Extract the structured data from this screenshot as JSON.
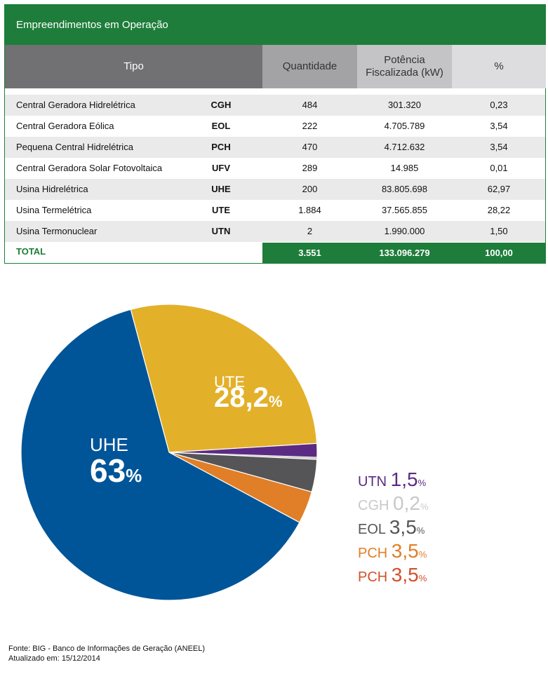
{
  "table": {
    "title": "Empreendimentos em Operação",
    "headers": {
      "tipo": "Tipo",
      "quantidade": "Quantidade",
      "potencia_line1": "Potência",
      "potencia_line2": "Fiscalizada (kW)",
      "percent": "%"
    },
    "rows": [
      {
        "name": "Central Geradora Hidrelétrica",
        "code": "CGH",
        "quantidade": "484",
        "potencia": "301.320",
        "percent": "0,23"
      },
      {
        "name": "Central Geradora Eólica",
        "code": "EOL",
        "quantidade": "222",
        "potencia": "4.705.789",
        "percent": "3,54"
      },
      {
        "name": "Pequena Central Hidrelétrica",
        "code": "PCH",
        "quantidade": "470",
        "potencia": "4.712.632",
        "percent": "3,54"
      },
      {
        "name": "Central Geradora Solar Fotovoltaica",
        "code": "UFV",
        "quantidade": "289",
        "potencia": "14.985",
        "percent": "0,01"
      },
      {
        "name": "Usina Hidrelétrica",
        "code": "UHE",
        "quantidade": "200",
        "potencia": "83.805.698",
        "percent": "62,97"
      },
      {
        "name": "Usina Termelétrica",
        "code": "UTE",
        "quantidade": "1.884",
        "potencia": "37.565.855",
        "percent": "28,22"
      },
      {
        "name": "Usina Termonuclear",
        "code": "UTN",
        "quantidade": "2",
        "potencia": "1.990.000",
        "percent": "1,50"
      }
    ],
    "total": {
      "label": "TOTAL",
      "quantidade": "3.551",
      "potencia": "133.096.279",
      "percent": "100,00"
    }
  },
  "chart_data": {
    "type": "pie",
    "slices": [
      {
        "label": "UTE",
        "value": 28.22,
        "display": "28,2",
        "color": "#e3b02a"
      },
      {
        "label": "UTN",
        "value": 1.5,
        "display": "1,5",
        "color": "#5b2b84"
      },
      {
        "label": "CGH",
        "value": 0.23,
        "display": "0,2",
        "color": "#c8c8c8"
      },
      {
        "label": "EOL",
        "value": 3.54,
        "display": "3,5",
        "color": "#555558"
      },
      {
        "label": "PCH",
        "value": 3.54,
        "display": "3,5",
        "color": "#e07f27"
      },
      {
        "label": "UFV",
        "value": 0.01,
        "display": "",
        "color": "#d2502a"
      },
      {
        "label": "UHE",
        "value": 62.97,
        "display": "63",
        "color": "#005599"
      }
    ],
    "inside_labels": [
      "UTE",
      "UHE"
    ],
    "percent_sign": "%",
    "legend": [
      {
        "code": "UTN",
        "value": "1,5",
        "color": "#5b2b84"
      },
      {
        "code": "CGH",
        "value": "0,2",
        "color": "#c8c8c8"
      },
      {
        "code": "EOL",
        "value": "3,5",
        "color": "#555558"
      },
      {
        "code": "PCH",
        "value": "3,5",
        "color": "#e07f27"
      },
      {
        "code": "PCH",
        "value": "3,5",
        "color": "#d2502a"
      }
    ]
  },
  "source": {
    "line1": "Fonte: BIG - Banco de Informações de Geração (ANEEL)",
    "line2": "Atualizado em: 15/12/2014"
  }
}
